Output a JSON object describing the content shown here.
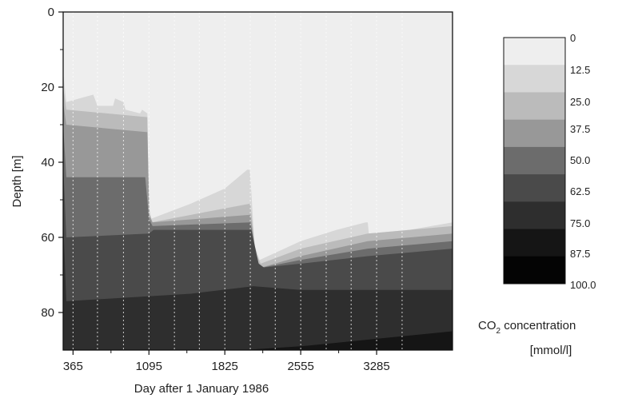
{
  "chart_data": {
    "type": "area",
    "subtype": "filled-contour",
    "xlabel": "Day after 1 January 1986",
    "ylabel": "Depth [m]",
    "xlim": [
      270,
      4015
    ],
    "ylim": [
      0,
      90
    ],
    "y_inverted": true,
    "x_ticks": [
      365,
      1095,
      1825,
      2555,
      3285
    ],
    "x_tick_labels": [
      "365",
      "1095",
      "1825",
      "2555",
      "3285"
    ],
    "y_ticks": [
      0,
      20,
      40,
      60,
      80
    ],
    "y_tick_labels": [
      "0",
      "20",
      "40",
      "60",
      "80"
    ],
    "sample_days": [
      365,
      600,
      850,
      1095,
      1340,
      1580,
      1825,
      2070,
      2310,
      2555,
      2800,
      3040,
      3285,
      3530
    ],
    "grid": false,
    "colorbar": {
      "title_main": "CO",
      "title_sub": "2",
      "title_rest": " concentration",
      "units": "[mmol/l]",
      "levels": [
        "0",
        "12.5",
        "25.0",
        "37.5",
        "50.0",
        "62.5",
        "75.0",
        "87.5",
        "100.0"
      ],
      "colors": [
        "#eeeeee",
        "#d7d7d7",
        "#bbbbbb",
        "#989898",
        "#6c6c6c",
        "#4a4a4a",
        "#2e2e2e",
        "#151515",
        "#040404"
      ],
      "placement": "right"
    },
    "contour_levels": [
      12.5,
      25.0,
      37.5,
      50.0,
      62.5,
      75.0,
      87.5
    ],
    "contour_depths": [
      {
        "level": 12.5,
        "points": [
          [
            270,
            16
          ],
          [
            300,
            24
          ],
          [
            560,
            22
          ],
          [
            600,
            25
          ],
          [
            750,
            25
          ],
          [
            770,
            23
          ],
          [
            850,
            24
          ],
          [
            870,
            26
          ],
          [
            1010,
            27
          ],
          [
            1030,
            26
          ],
          [
            1080,
            27
          ],
          [
            1095,
            52
          ],
          [
            1120,
            55
          ],
          [
            1500,
            51
          ],
          [
            1825,
            47
          ],
          [
            2040,
            42
          ],
          [
            2065,
            42
          ],
          [
            2080,
            48
          ],
          [
            2110,
            62
          ],
          [
            2160,
            66
          ],
          [
            2555,
            61
          ],
          [
            2900,
            58
          ],
          [
            3180,
            56
          ],
          [
            3200,
            56
          ],
          [
            3210,
            59
          ],
          [
            3600,
            58
          ],
          [
            4015,
            56
          ]
        ]
      },
      {
        "level": 25.0,
        "points": [
          [
            270,
            20
          ],
          [
            300,
            26
          ],
          [
            1080,
            28
          ],
          [
            1095,
            54
          ],
          [
            1120,
            56
          ],
          [
            2070,
            51
          ],
          [
            2120,
            64
          ],
          [
            2170,
            67
          ],
          [
            2555,
            63
          ],
          [
            3200,
            59
          ],
          [
            4015,
            57
          ]
        ]
      },
      {
        "level": 37.5,
        "points": [
          [
            270,
            24
          ],
          [
            300,
            30
          ],
          [
            1080,
            32
          ],
          [
            1100,
            54
          ],
          [
            1130,
            56
          ],
          [
            2070,
            54
          ],
          [
            2130,
            66
          ],
          [
            2180,
            68
          ],
          [
            2555,
            65
          ],
          [
            3200,
            61
          ],
          [
            4015,
            59
          ]
        ]
      },
      {
        "level": 50.0,
        "points": [
          [
            270,
            30
          ],
          [
            300,
            44
          ],
          [
            1060,
            44
          ],
          [
            1095,
            55
          ],
          [
            1130,
            57
          ],
          [
            2070,
            56
          ],
          [
            2140,
            67
          ],
          [
            2190,
            68
          ],
          [
            2555,
            66
          ],
          [
            3200,
            63
          ],
          [
            4015,
            61
          ]
        ]
      },
      {
        "level": 62.5,
        "points": [
          [
            270,
            40
          ],
          [
            300,
            60
          ],
          [
            1095,
            59
          ],
          [
            1140,
            58
          ],
          [
            2080,
            58
          ],
          [
            2150,
            67
          ],
          [
            2200,
            68
          ],
          [
            2555,
            67
          ],
          [
            3200,
            65
          ],
          [
            4015,
            63
          ]
        ]
      },
      {
        "level": 75.0,
        "points": [
          [
            270,
            55
          ],
          [
            300,
            77
          ],
          [
            1500,
            75
          ],
          [
            2100,
            73
          ],
          [
            2555,
            74
          ],
          [
            3200,
            74
          ],
          [
            4015,
            74
          ]
        ]
      },
      {
        "level": 87.5,
        "points": [
          [
            270,
            90
          ],
          [
            2000,
            90
          ],
          [
            2555,
            89
          ],
          [
            3285,
            87
          ],
          [
            4015,
            85
          ]
        ]
      }
    ]
  }
}
